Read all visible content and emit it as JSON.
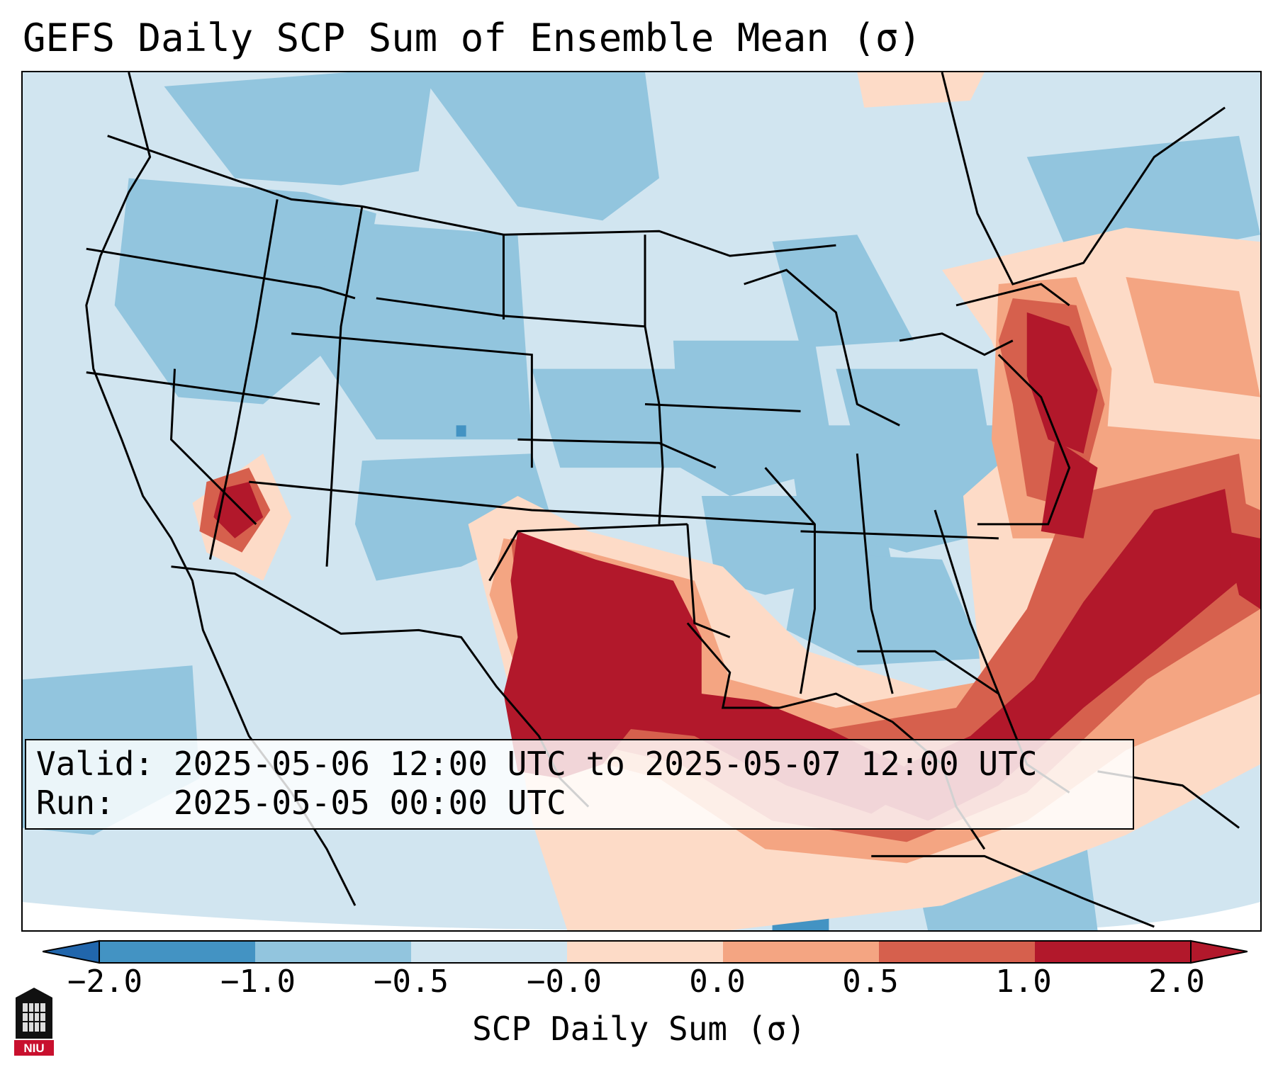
{
  "title": "GEFS Daily SCP Sum of Ensemble Mean (σ)",
  "info": {
    "valid_label": "Valid:",
    "valid_value": "2025-05-06 12:00 UTC to 2025-05-07 12:00 UTC",
    "run_label": "Run:",
    "run_value": "2025-05-05 00:00 UTC"
  },
  "colorbar": {
    "label": "SCP Daily Sum (σ)",
    "ticks": [
      "−2.0",
      "−1.0",
      "−0.5",
      "−0.0",
      "0.0",
      "0.5",
      "1.0",
      "2.0"
    ],
    "colors": [
      "#4393c3",
      "#92c5de",
      "#d1e5f0",
      "#fddbc7",
      "#f4a582",
      "#d6604d",
      "#b2182b"
    ],
    "extend": "both"
  },
  "colors": {
    "deep_blue": "#4393c3",
    "mid_blue": "#92c5de",
    "light_blue": "#d1e5f0",
    "light_red": "#fddbc7",
    "mid_red": "#f4a582",
    "red": "#d6604d",
    "dark_red": "#b2182b"
  },
  "logo": {
    "text": "NIU"
  }
}
